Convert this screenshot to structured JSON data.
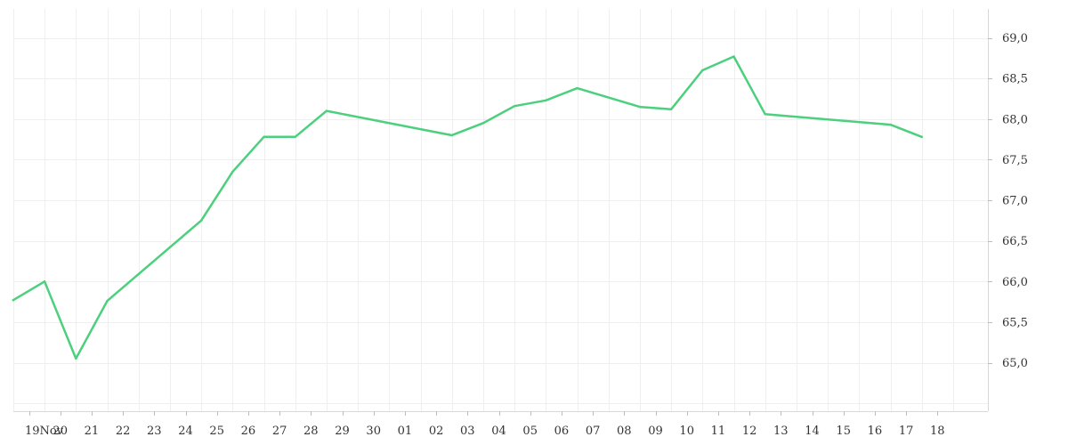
{
  "chart_data": {
    "type": "line",
    "title": "",
    "xlabel": "",
    "ylabel": "",
    "grid": true,
    "legend": "none",
    "x_tick_labels": [
      "19Nov",
      "20",
      "21",
      "22",
      "23",
      "24",
      "25",
      "26",
      "27",
      "28",
      "29",
      "30",
      "01",
      "02",
      "03",
      "04",
      "05",
      "06",
      "07",
      "08",
      "09",
      "10",
      "11",
      "12",
      "13",
      "14",
      "15",
      "16",
      "17",
      "18"
    ],
    "y_ticks": [
      65.0,
      65.5,
      66.0,
      66.5,
      67.0,
      67.5,
      68.0,
      68.5,
      69.0
    ],
    "y_tick_labels": [
      "65,0",
      "65,5",
      "66,0",
      "66,5",
      "67,0",
      "67,5",
      "68,0",
      "68,5",
      "69,0"
    ],
    "ylim": [
      64.4,
      69.3
    ],
    "series": [
      {
        "color": "#4cd07d",
        "x": [
          -0.5,
          0.5,
          1.5,
          2.5,
          5.5,
          6.5,
          7.5,
          8.5,
          9.5,
          13.5,
          14.5,
          15.5,
          16.5,
          17.5,
          19.5,
          20.5,
          21.5,
          22.5,
          23.5,
          27.5,
          28.5
        ],
        "values": [
          65.77,
          66.0,
          65.05,
          65.76,
          66.75,
          67.35,
          67.78,
          67.78,
          68.1,
          67.8,
          67.95,
          68.16,
          68.23,
          68.38,
          68.15,
          68.12,
          68.6,
          68.77,
          68.06,
          67.93,
          67.78
        ]
      }
    ]
  }
}
